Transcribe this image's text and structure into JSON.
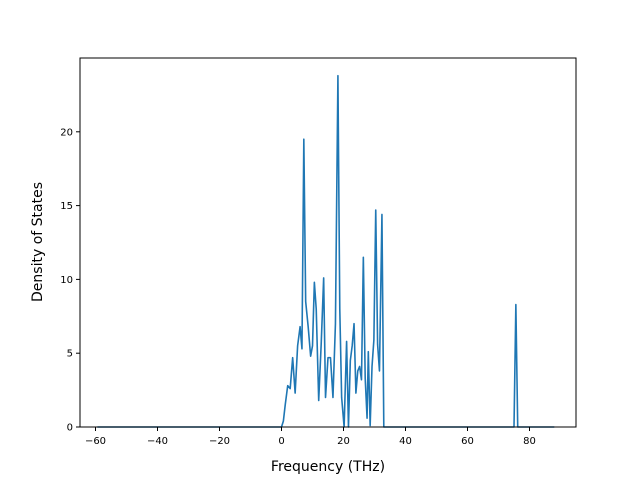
{
  "chart_data": {
    "type": "line",
    "title": "",
    "xlabel": "Frequency (THz)",
    "ylabel": "Density of States",
    "xlim": [
      -65,
      95
    ],
    "ylim": [
      0,
      25
    ],
    "xticks": [
      -60,
      -40,
      -20,
      0,
      20,
      40,
      60,
      80
    ],
    "yticks": [
      0,
      5,
      10,
      15,
      20
    ],
    "grid": false,
    "legend": "none",
    "colors": {
      "line": "#1f77b4",
      "axes": "#000000",
      "background": "#ffffff"
    },
    "series": [
      {
        "x": [
          -59.4,
          0.0,
          0.6,
          1.2,
          2.0,
          2.8,
          3.6,
          4.4,
          5.2,
          6.0,
          6.6,
          7.2,
          7.8,
          8.6,
          9.4,
          10.0,
          10.6,
          11.2,
          12.0,
          12.8,
          13.6,
          14.2,
          15.0,
          15.8,
          16.6,
          17.4,
          18.2,
          18.8,
          19.4,
          20.2,
          21.0,
          21.6,
          22.2,
          22.8,
          23.4,
          24.0,
          24.6,
          25.2,
          25.8,
          26.4,
          27.0,
          27.6,
          28.0,
          28.6,
          29.2,
          29.8,
          30.4,
          31.0,
          31.6,
          32.4,
          33.0,
          33.6,
          34.2,
          34.8,
          35.4,
          75.0,
          75.6,
          76.2,
          76.8,
          88.0
        ],
        "y": [
          0.0,
          0.0,
          0.4,
          1.5,
          2.8,
          2.6,
          4.7,
          2.3,
          5.5,
          6.8,
          5.3,
          19.5,
          8.5,
          6.8,
          4.8,
          5.5,
          9.8,
          8.0,
          1.8,
          5.6,
          10.1,
          2.0,
          4.7,
          4.7,
          2.0,
          7.0,
          23.8,
          8.0,
          2.0,
          0.0,
          5.8,
          0.0,
          4.5,
          5.5,
          7.0,
          2.3,
          3.8,
          4.1,
          3.2,
          11.5,
          3.3,
          0.6,
          5.1,
          0.1,
          4.1,
          5.9,
          14.7,
          5.6,
          3.8,
          14.4,
          0.0,
          0.0,
          0.0,
          0.0,
          0.0,
          0.0,
          8.3,
          0.0,
          0.0,
          0.0
        ]
      }
    ]
  }
}
